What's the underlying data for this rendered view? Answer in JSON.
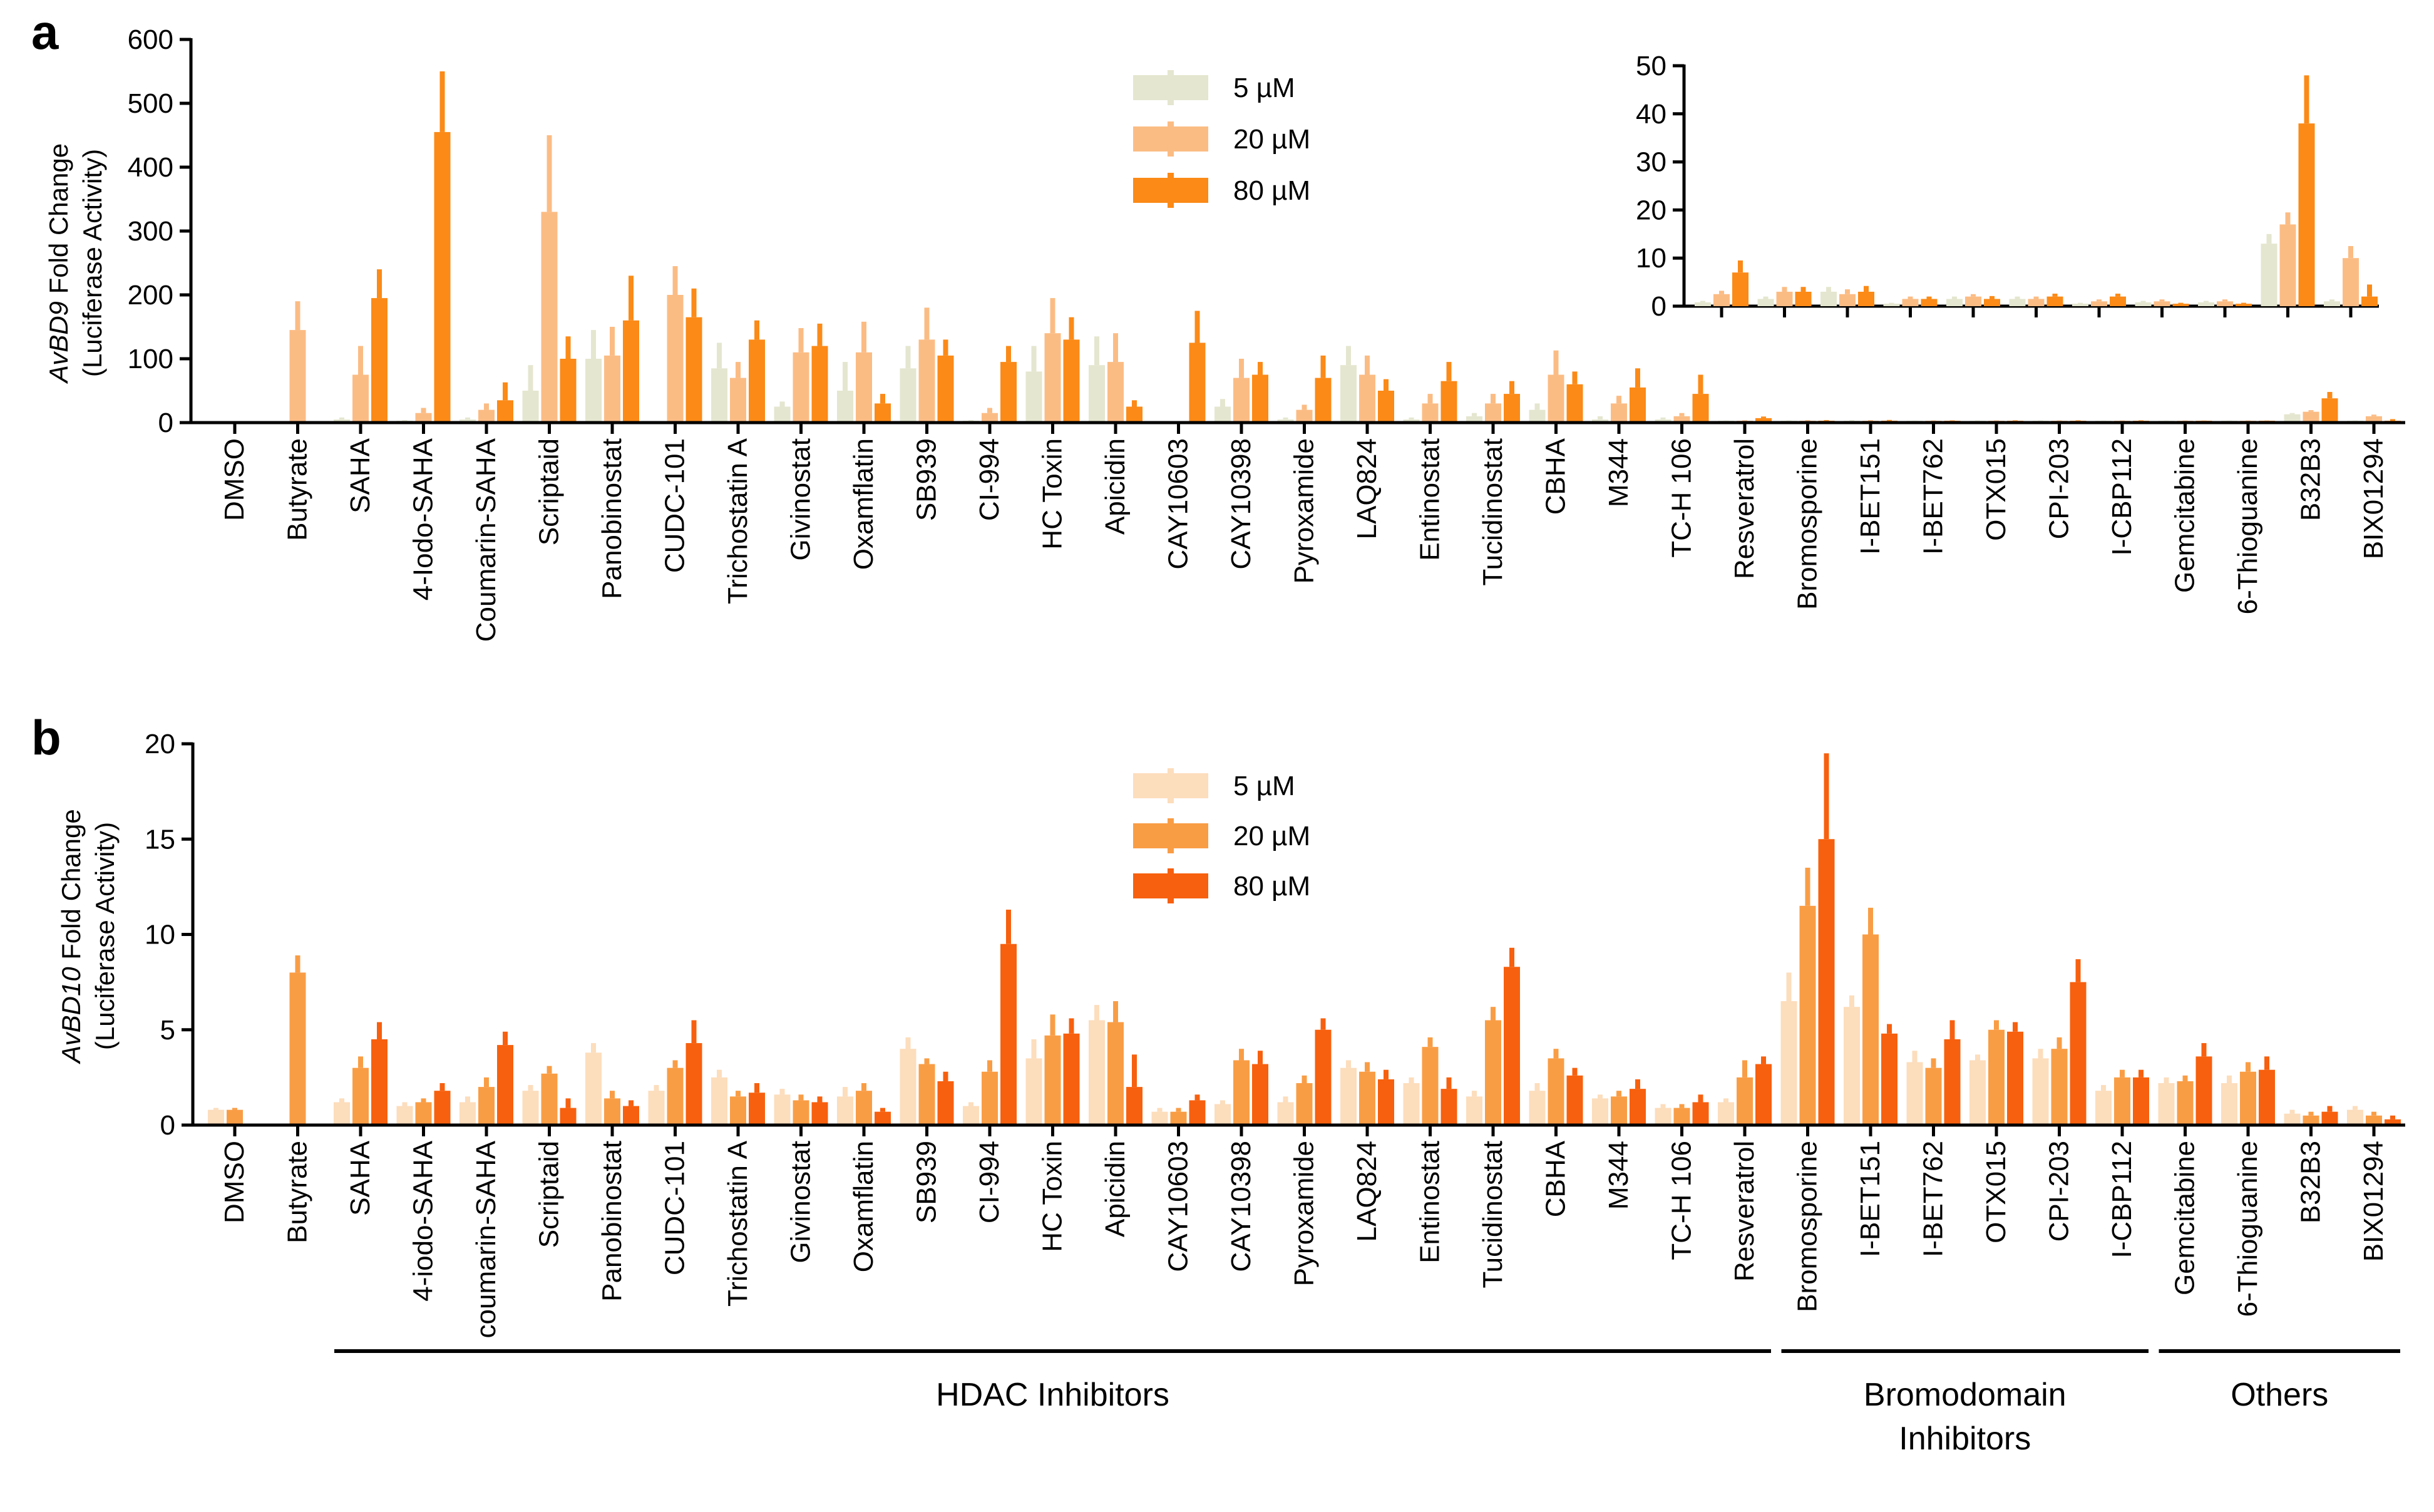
{
  "colors": {
    "panel_a": [
      "#E5E6CF",
      "#FBBC84",
      "#FB8A17"
    ],
    "panel_b": [
      "#FCDDBC",
      "#F99D45",
      "#F7600E"
    ]
  },
  "chart_data": [
    {
      "panel_label": "a",
      "type": "bar",
      "ylabel_italic": "AvBD9",
      "ylabel_rest": " Fold Change",
      "ylabel_line2": "(Luciferase Activity)",
      "ylim": [
        0,
        600
      ],
      "yticks": [
        "0",
        "100",
        "200",
        "300",
        "400",
        "500",
        "600"
      ],
      "legend": [
        "5 µM",
        "20 µM",
        "80 µM"
      ],
      "categories": [
        "DMSO",
        "Butyrate",
        "SAHA",
        "4-Iodo-SAHA",
        "Coumarin-SAHA",
        "Scriptaid",
        "Panobinostat",
        "CUDC-101",
        "Trichostatin A",
        "Givinostat",
        "Oxamflatin",
        "SB939",
        "CI-994",
        "HC Toxin",
        "Apicidin",
        "CAY10603",
        "CAY10398",
        "Pyroxamide",
        "LAQ824",
        "Entinostat",
        "Tucidinostat",
        "CBHA",
        "M344",
        "TC-H 106",
        "Resveratrol",
        "Bromosporine",
        "I-BET151",
        "I-BET762",
        "OTX015",
        "CPI-203",
        "I-CBP112",
        "Gemcitabine",
        "6-Thioguanine",
        "B32B3",
        "BIX01294"
      ],
      "series": [
        {
          "name": "5 µM",
          "values": [
            0,
            0,
            5,
            2,
            5,
            50,
            100,
            0,
            85,
            25,
            50,
            85,
            2,
            80,
            90,
            0,
            25,
            5,
            90,
            5,
            10,
            20,
            5,
            5,
            0.8,
            1.5,
            3,
            0.5,
            1.5,
            1.5,
            0.5,
            0.8,
            0.8,
            13,
            1
          ]
        },
        {
          "name": "20 µM",
          "values": [
            0,
            145,
            75,
            15,
            20,
            330,
            105,
            200,
            70,
            110,
            110,
            130,
            15,
            140,
            95,
            0,
            70,
            20,
            75,
            30,
            30,
            75,
            30,
            10,
            2.5,
            3,
            2.5,
            1.5,
            2,
            1.5,
            1,
            1,
            1,
            17,
            10
          ]
        },
        {
          "name": "80 µM",
          "values": [
            0,
            0,
            195,
            455,
            35,
            100,
            160,
            165,
            130,
            120,
            30,
            105,
            95,
            130,
            25,
            125,
            75,
            70,
            50,
            65,
            45,
            60,
            55,
            45,
            7,
            3,
            3,
            1.5,
            1.5,
            2,
            2,
            0.5,
            0.5,
            38,
            2
          ]
        }
      ],
      "errors": [
        [
          0,
          0,
          3,
          1,
          3,
          40,
          45,
          0,
          40,
          8,
          45,
          35,
          1,
          40,
          45,
          0,
          12,
          3,
          30,
          3,
          5,
          10,
          5,
          3,
          0.3,
          0.5,
          1,
          0.2,
          0.5,
          0.5,
          0.2,
          0.3,
          0.3,
          2,
          0.4
        ],
        [
          0,
          45,
          45,
          8,
          10,
          120,
          45,
          45,
          25,
          38,
          48,
          50,
          8,
          55,
          45,
          0,
          30,
          8,
          30,
          15,
          15,
          38,
          12,
          5,
          0.7,
          1,
          1,
          0.5,
          0.5,
          0.5,
          0.4,
          0.4,
          0.4,
          2.5,
          2.5
        ],
        [
          0,
          0,
          45,
          95,
          28,
          35,
          70,
          45,
          30,
          35,
          15,
          25,
          25,
          35,
          10,
          50,
          20,
          35,
          18,
          30,
          20,
          20,
          30,
          30,
          2.5,
          1,
          1.2,
          0.5,
          0.6,
          0.6,
          0.6,
          0.2,
          0.2,
          10,
          2.5
        ]
      ],
      "inset": {
        "ylim": [
          0,
          50
        ],
        "yticks": [
          "0",
          "10",
          "20",
          "30",
          "40",
          "50"
        ],
        "start_index": 24
      }
    },
    {
      "panel_label": "b",
      "type": "bar",
      "ylabel_italic": "AvBD10",
      "ylabel_rest": " Fold Change",
      "ylabel_line2": "(Luciferase Activity)",
      "ylim": [
        0,
        20
      ],
      "yticks": [
        "0",
        "5",
        "10",
        "15",
        "20"
      ],
      "legend": [
        "5 µM",
        "20 µM",
        "80 µM"
      ],
      "categories": [
        "DMSO",
        "Butyrate",
        "SAHA",
        "4-iodo-SAHA",
        "coumarin-SAHA",
        "Scriptaid",
        "Panobinostat",
        "CUDC-101",
        "Trichostatin A",
        "Givinostat",
        "Oxamflatin",
        "SB939",
        "CI-994",
        "HC Toxin",
        "Apicidin",
        "CAY10603",
        "CAY10398",
        "Pyroxamide",
        "LAQ824",
        "Entinostat",
        "Tucidinostat",
        "CBHA",
        "M344",
        "TC-H 106",
        "Resveratrol",
        "Bromosporine",
        "I-BET151",
        "I-BET762",
        "OTX015",
        "CPI-203",
        "I-CBP112",
        "Gemcitabine",
        "6-Thioguanine",
        "B32B3",
        "BIX01294"
      ],
      "series": [
        {
          "name": "5 µM",
          "values": [
            0.8,
            0,
            1.2,
            1.0,
            1.2,
            1.8,
            3.8,
            1.8,
            2.5,
            1.6,
            1.5,
            4.0,
            1.0,
            3.5,
            5.5,
            0.7,
            1.1,
            1.2,
            3.0,
            2.2,
            1.5,
            1.8,
            1.4,
            0.9,
            1.2,
            6.5,
            6.2,
            3.3,
            3.4,
            3.5,
            1.8,
            2.2,
            2.2,
            0.6,
            0.8
          ]
        },
        {
          "name": "20 µM",
          "values": [
            0.8,
            8.0,
            3.0,
            1.2,
            2.0,
            2.7,
            1.4,
            3.0,
            1.5,
            1.3,
            1.8,
            3.2,
            2.8,
            4.7,
            5.4,
            0.7,
            3.4,
            2.2,
            2.8,
            4.1,
            5.5,
            3.5,
            1.5,
            0.9,
            2.5,
            11.5,
            10.0,
            3.0,
            5.0,
            4.0,
            2.5,
            2.3,
            2.8,
            0.5,
            0.5
          ]
        },
        {
          "name": "80 µM",
          "values": [
            0,
            0,
            4.5,
            1.8,
            4.2,
            0.9,
            1.0,
            4.3,
            1.7,
            1.2,
            0.7,
            2.3,
            9.5,
            4.8,
            2.0,
            1.3,
            3.2,
            5.0,
            2.4,
            1.9,
            8.3,
            2.6,
            1.9,
            1.2,
            3.2,
            15.0,
            4.8,
            4.5,
            4.9,
            7.5,
            2.5,
            3.6,
            2.9,
            0.7,
            0.3
          ]
        }
      ],
      "errors": [
        [
          0.1,
          0,
          0.2,
          0.2,
          0.3,
          0.3,
          0.5,
          0.3,
          0.4,
          0.3,
          0.5,
          0.6,
          0.2,
          1.0,
          0.8,
          0.2,
          0.2,
          0.3,
          0.4,
          0.3,
          0.3,
          0.4,
          0.2,
          0.2,
          0.2,
          1.5,
          0.6,
          0.6,
          0.3,
          0.5,
          0.3,
          0.3,
          0.4,
          0.2,
          0.2
        ],
        [
          0.1,
          0.9,
          0.6,
          0.2,
          0.5,
          0.4,
          0.4,
          0.4,
          0.3,
          0.3,
          0.4,
          0.3,
          0.6,
          1.1,
          1.1,
          0.2,
          0.6,
          0.4,
          0.5,
          0.5,
          0.7,
          0.5,
          0.3,
          0.2,
          0.9,
          2.0,
          1.4,
          0.5,
          0.5,
          0.6,
          0.4,
          0.3,
          0.5,
          0.2,
          0.2
        ],
        [
          0,
          0,
          0.9,
          0.4,
          0.7,
          0.5,
          0.3,
          1.2,
          0.5,
          0.3,
          0.2,
          0.5,
          1.8,
          0.8,
          1.7,
          0.3,
          0.7,
          0.6,
          0.5,
          0.6,
          1.0,
          0.4,
          0.5,
          0.4,
          0.4,
          4.5,
          0.5,
          1.0,
          0.5,
          1.2,
          0.4,
          0.7,
          0.7,
          0.3,
          0.2
        ]
      ],
      "groups": [
        {
          "label_lines": [
            "HDAC Inhibitors"
          ],
          "from_index": 2,
          "to_index": 24
        },
        {
          "label_lines": [
            "Bromodomain",
            "Inhibitors"
          ],
          "from_index": 25,
          "to_index": 30
        },
        {
          "label_lines": [
            "Others"
          ],
          "from_index": 31,
          "to_index": 34
        }
      ]
    }
  ]
}
